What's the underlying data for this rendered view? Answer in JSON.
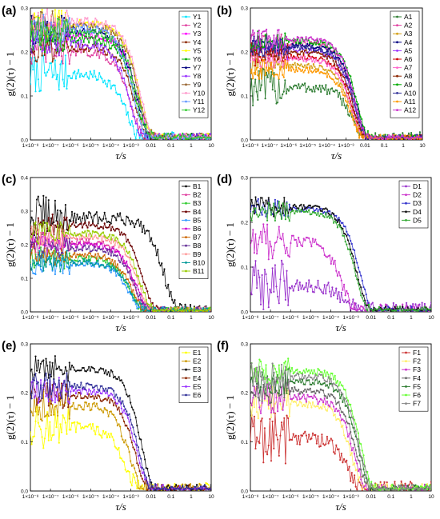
{
  "chart_data": [
    {
      "panel": "(a)",
      "type": "scatter",
      "x_scale": "log",
      "xlabel": "τ/s",
      "ylabel": "g(2)(τ) − 1",
      "xlim": [
        1e-08,
        10
      ],
      "ylim": [
        0,
        0.3
      ],
      "yticks": [
        "0.0",
        "0.1",
        "0.2",
        "0.3"
      ],
      "xticks": [
        "1×10⁻⁸",
        "1×10⁻⁷",
        "1×10⁻⁶",
        "1×10⁻⁵",
        "1×10⁻⁴",
        "1×10⁻³",
        "0.01",
        "0.1",
        "1",
        "10"
      ],
      "legend_position": "top-right",
      "series": [
        {
          "name": "Y1",
          "color": "#00e5ff",
          "plateau": 0.15,
          "decay_time": 0.0007,
          "noise": 0.02
        },
        {
          "name": "Y2",
          "color": "#e040a0",
          "plateau": 0.2,
          "decay_time": 0.0012,
          "noise": 0.015
        },
        {
          "name": "Y3",
          "color": "#ff00ff",
          "plateau": 0.24,
          "decay_time": 0.0025,
          "noise": 0.015
        },
        {
          "name": "Y4",
          "color": "#8b2500",
          "plateau": 0.21,
          "decay_time": 0.0018,
          "noise": 0.015
        },
        {
          "name": "Y5",
          "color": "#ffff00",
          "plateau": 0.265,
          "decay_time": 0.003,
          "noise": 0.015
        },
        {
          "name": "Y6",
          "color": "#00aa00",
          "plateau": 0.23,
          "decay_time": 0.002,
          "noise": 0.015
        },
        {
          "name": "Y7",
          "color": "#000080",
          "plateau": 0.25,
          "decay_time": 0.0022,
          "noise": 0.015
        },
        {
          "name": "Y8",
          "color": "#9933ff",
          "plateau": 0.22,
          "decay_time": 0.001,
          "noise": 0.015
        },
        {
          "name": "Y9",
          "color": "#996633",
          "plateau": 0.26,
          "decay_time": 0.0028,
          "noise": 0.015
        },
        {
          "name": "Y10",
          "color": "#ff99cc",
          "plateau": 0.27,
          "decay_time": 0.0032,
          "noise": 0.015
        },
        {
          "name": "Y11",
          "color": "#6699ff",
          "plateau": 0.255,
          "decay_time": 0.0015,
          "noise": 0.015
        },
        {
          "name": "Y12",
          "color": "#33cc33",
          "plateau": 0.245,
          "decay_time": 0.0024,
          "noise": 0.015
        }
      ]
    },
    {
      "panel": "(b)",
      "type": "scatter",
      "x_scale": "log",
      "xlabel": "τ/s",
      "ylabel": "g(2)(τ) − 1",
      "xlim": [
        1e-08,
        10
      ],
      "ylim": [
        0,
        0.3
      ],
      "yticks": [
        "0.0",
        "0.1",
        "0.2",
        "0.3"
      ],
      "xticks": [
        "1×10⁻⁸",
        "1×10⁻⁷",
        "1×10⁻⁶",
        "1×10⁻⁵",
        "1×10⁻⁴",
        "1×10⁻³",
        "0.01",
        "0.1",
        "1",
        "10"
      ],
      "legend_position": "top-right",
      "series": [
        {
          "name": "A1",
          "color": "#2e7d32",
          "plateau": 0.12,
          "decay_time": 0.0025,
          "noise": 0.02
        },
        {
          "name": "A2",
          "color": "#e040a0",
          "plateau": 0.22,
          "decay_time": 0.003,
          "noise": 0.01
        },
        {
          "name": "A3",
          "color": "#d4a017",
          "plateau": 0.17,
          "decay_time": 0.002,
          "noise": 0.01
        },
        {
          "name": "A4",
          "color": "#000080",
          "plateau": 0.215,
          "decay_time": 0.0035,
          "noise": 0.01
        },
        {
          "name": "A5",
          "color": "#9933ff",
          "plateau": 0.205,
          "decay_time": 0.0028,
          "noise": 0.01
        },
        {
          "name": "A6",
          "color": "#cc0000",
          "plateau": 0.19,
          "decay_time": 0.0022,
          "noise": 0.01
        },
        {
          "name": "A7",
          "color": "#ff66cc",
          "plateau": 0.185,
          "decay_time": 0.002,
          "noise": 0.01
        },
        {
          "name": "A8",
          "color": "#8b2500",
          "plateau": 0.2,
          "decay_time": 0.0026,
          "noise": 0.01
        },
        {
          "name": "A9",
          "color": "#00aa00",
          "plateau": 0.225,
          "decay_time": 0.004,
          "noise": 0.01
        },
        {
          "name": "A10",
          "color": "#333399",
          "plateau": 0.21,
          "decay_time": 0.003,
          "noise": 0.01
        },
        {
          "name": "A11",
          "color": "#ff9900",
          "plateau": 0.16,
          "decay_time": 0.0018,
          "noise": 0.01
        },
        {
          "name": "A12",
          "color": "#cc33cc",
          "plateau": 0.23,
          "decay_time": 0.0032,
          "noise": 0.01
        }
      ]
    },
    {
      "panel": "(c)",
      "type": "scatter",
      "x_scale": "log",
      "xlabel": "τ/s",
      "ylabel": "g(2)(τ) − 1",
      "xlim": [
        1e-08,
        10
      ],
      "ylim": [
        0,
        0.4
      ],
      "yticks": [
        "0.0",
        "0.1",
        "0.2",
        "0.3",
        "0.4"
      ],
      "xticks": [
        "1×10⁻⁸",
        "1×10⁻⁷",
        "1×10⁻⁶",
        "1×10⁻⁵",
        "1×10⁻⁴",
        "1×10⁻³",
        "0.01",
        "0.1",
        "1",
        "10"
      ],
      "legend_position": "top-right",
      "series": [
        {
          "name": "B1",
          "color": "#111111",
          "plateau": 0.28,
          "decay_time": 0.05,
          "noise": 0.03
        },
        {
          "name": "B2",
          "color": "#e040a0",
          "plateau": 0.21,
          "decay_time": 0.0015,
          "noise": 0.015
        },
        {
          "name": "B3",
          "color": "#33cc33",
          "plateau": 0.16,
          "decay_time": 0.001,
          "noise": 0.015
        },
        {
          "name": "B4",
          "color": "#6b0000",
          "plateau": 0.26,
          "decay_time": 0.004,
          "noise": 0.015
        },
        {
          "name": "B5",
          "color": "#3399ff",
          "plateau": 0.145,
          "decay_time": 0.0009,
          "noise": 0.015
        },
        {
          "name": "B6",
          "color": "#cc00cc",
          "plateau": 0.2,
          "decay_time": 0.002,
          "noise": 0.015
        },
        {
          "name": "B7",
          "color": "#cc6600",
          "plateau": 0.17,
          "decay_time": 0.0012,
          "noise": 0.015
        },
        {
          "name": "B8",
          "color": "#663399",
          "plateau": 0.19,
          "decay_time": 0.0018,
          "noise": 0.015
        },
        {
          "name": "B9",
          "color": "#ff9999",
          "plateau": 0.225,
          "decay_time": 0.0025,
          "noise": 0.015
        },
        {
          "name": "B10",
          "color": "#009999",
          "plateau": 0.15,
          "decay_time": 0.0011,
          "noise": 0.015
        },
        {
          "name": "B11",
          "color": "#99cc00",
          "plateau": 0.235,
          "decay_time": 0.003,
          "noise": 0.015
        }
      ]
    },
    {
      "panel": "(d)",
      "type": "scatter",
      "x_scale": "log",
      "xlabel": "τ/s",
      "ylabel": "g(2)(τ) − 1",
      "xlim": [
        1e-08,
        10
      ],
      "ylim": [
        0,
        0.3
      ],
      "yticks": [
        "0.0",
        "0.1",
        "0.2",
        "0.3"
      ],
      "xticks": [
        "1×10⁻⁸",
        "1×10⁻⁷",
        "1×10⁻⁶",
        "1×10⁻⁵",
        "1×10⁻⁴",
        "1×10⁻³",
        "0.01",
        "0.1",
        "1",
        "10"
      ],
      "legend_position": "top-right",
      "series": [
        {
          "name": "D1",
          "color": "#9933cc",
          "plateau": 0.06,
          "decay_time": 0.0006,
          "noise": 0.025
        },
        {
          "name": "D2",
          "color": "#cc33cc",
          "plateau": 0.16,
          "decay_time": 0.0004,
          "noise": 0.02
        },
        {
          "name": "D3",
          "color": "#3333cc",
          "plateau": 0.23,
          "decay_time": 0.003,
          "noise": 0.01
        },
        {
          "name": "D4",
          "color": "#111111",
          "plateau": 0.235,
          "decay_time": 0.002,
          "noise": 0.01
        },
        {
          "name": "D5",
          "color": "#33aa33",
          "plateau": 0.225,
          "decay_time": 0.0018,
          "noise": 0.01
        }
      ]
    },
    {
      "panel": "(e)",
      "type": "scatter",
      "x_scale": "log",
      "xlabel": "τ/s",
      "ylabel": "g(2)(τ) − 1",
      "xlim": [
        1e-08,
        10
      ],
      "ylim": [
        0,
        0.3
      ],
      "yticks": [
        "0.0",
        "0.1",
        "0.2",
        "0.3"
      ],
      "xticks": [
        "1×10⁻⁸",
        "1×10⁻⁷",
        "1×10⁻⁶",
        "1×10⁻⁵",
        "1×10⁻⁴",
        "1×10⁻³",
        "0.01",
        "0.1",
        "1",
        "10"
      ],
      "legend_position": "top-right",
      "series": [
        {
          "name": "E1",
          "color": "#ffff00",
          "plateau": 0.13,
          "decay_time": 0.0006,
          "noise": 0.02
        },
        {
          "name": "E2",
          "color": "#cc9900",
          "plateau": 0.175,
          "decay_time": 0.001,
          "noise": 0.015
        },
        {
          "name": "E3",
          "color": "#111111",
          "plateau": 0.25,
          "decay_time": 0.0035,
          "noise": 0.012
        },
        {
          "name": "E4",
          "color": "#8b2500",
          "plateau": 0.195,
          "decay_time": 0.0018,
          "noise": 0.012
        },
        {
          "name": "E5",
          "color": "#9933ff",
          "plateau": 0.205,
          "decay_time": 0.0022,
          "noise": 0.012
        },
        {
          "name": "E6",
          "color": "#333399",
          "plateau": 0.215,
          "decay_time": 0.0026,
          "noise": 0.012
        }
      ]
    },
    {
      "panel": "(f)",
      "type": "scatter",
      "x_scale": "log",
      "xlabel": "τ/s",
      "ylabel": "g(2)(τ) − 1",
      "xlim": [
        1e-08,
        10
      ],
      "ylim": [
        0,
        0.3
      ],
      "yticks": [
        "0.0",
        "0.1",
        "0.2",
        "0.3"
      ],
      "xticks": [
        "1×10⁻⁸",
        "1×10⁻⁷",
        "1×10⁻⁶",
        "1×10⁻⁵",
        "1×10⁻⁴",
        "1×10⁻³",
        "0.01",
        "0.1",
        "1",
        "10"
      ],
      "legend_position": "top-right",
      "series": [
        {
          "name": "F1",
          "color": "#cc3333",
          "plateau": 0.11,
          "decay_time": 0.0008,
          "noise": 0.025
        },
        {
          "name": "F2",
          "color": "#ffee66",
          "plateau": 0.18,
          "decay_time": 0.0012,
          "noise": 0.015
        },
        {
          "name": "F3",
          "color": "#cc33cc",
          "plateau": 0.19,
          "decay_time": 0.0016,
          "noise": 0.015
        },
        {
          "name": "F4",
          "color": "#666666",
          "plateau": 0.205,
          "decay_time": 0.002,
          "noise": 0.012
        },
        {
          "name": "F5",
          "color": "#2e7d32",
          "plateau": 0.225,
          "decay_time": 0.0026,
          "noise": 0.012
        },
        {
          "name": "F6",
          "color": "#66ff33",
          "plateau": 0.245,
          "decay_time": 0.0032,
          "noise": 0.012
        },
        {
          "name": "F7",
          "color": "#888888",
          "plateau": 0.235,
          "decay_time": 0.0028,
          "noise": 0.012
        }
      ]
    }
  ]
}
